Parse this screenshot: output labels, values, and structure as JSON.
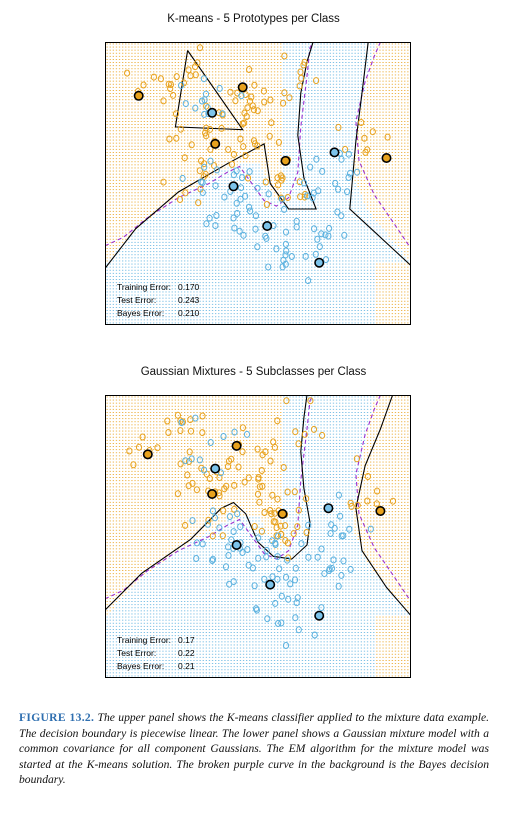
{
  "figure": {
    "label": "FIGURE 13.2.",
    "caption": "The upper panel shows the K-means classifier applied to the mixture data example. The decision boundary is piecewise linear. The lower panel shows a Gaussian mixture model with a common covariance for all component Gaussians. The EM algorithm for the mixture model was started at the K-means solution. The broken purple curve in the background is the Bayes decision boundary."
  },
  "colors": {
    "orange": "#e8a21d",
    "blue": "#5bb1df",
    "orange_dot": "#e8a21d",
    "blue_dot": "#7cc3ea",
    "boundary": "#000000",
    "bayes": "#9b30d0"
  },
  "chart_data": [
    {
      "type": "scatter",
      "title": "K-means - 5 Prototypes per Class",
      "errors": [
        {
          "label": "Training Error:",
          "value": "0.170"
        },
        {
          "label": "Test Error:",
          "value": "0.243"
        },
        {
          "label": "Bayes Error:",
          "value": "0.210"
        }
      ],
      "prototypes": {
        "orange": [
          [
            0.11,
            0.19
          ],
          [
            0.45,
            0.16
          ],
          [
            0.36,
            0.36
          ],
          [
            0.59,
            0.42
          ],
          [
            0.92,
            0.41
          ]
        ],
        "blue": [
          [
            0.35,
            0.25
          ],
          [
            0.42,
            0.51
          ],
          [
            0.53,
            0.65
          ],
          [
            0.75,
            0.39
          ],
          [
            0.7,
            0.78
          ]
        ]
      }
    },
    {
      "type": "scatter",
      "title": "Gaussian Mixtures - 5 Subclasses per Class",
      "errors": [
        {
          "label": "Training Error:",
          "value": "0.17"
        },
        {
          "label": "Test Error:",
          "value": "0.22"
        },
        {
          "label": "Bayes Error:",
          "value": "0.21"
        }
      ],
      "prototypes": {
        "orange": [
          [
            0.14,
            0.21
          ],
          [
            0.43,
            0.18
          ],
          [
            0.35,
            0.35
          ],
          [
            0.58,
            0.42
          ],
          [
            0.9,
            0.41
          ]
        ],
        "blue": [
          [
            0.36,
            0.26
          ],
          [
            0.43,
            0.53
          ],
          [
            0.54,
            0.67
          ],
          [
            0.73,
            0.4
          ],
          [
            0.7,
            0.78
          ]
        ]
      }
    }
  ]
}
